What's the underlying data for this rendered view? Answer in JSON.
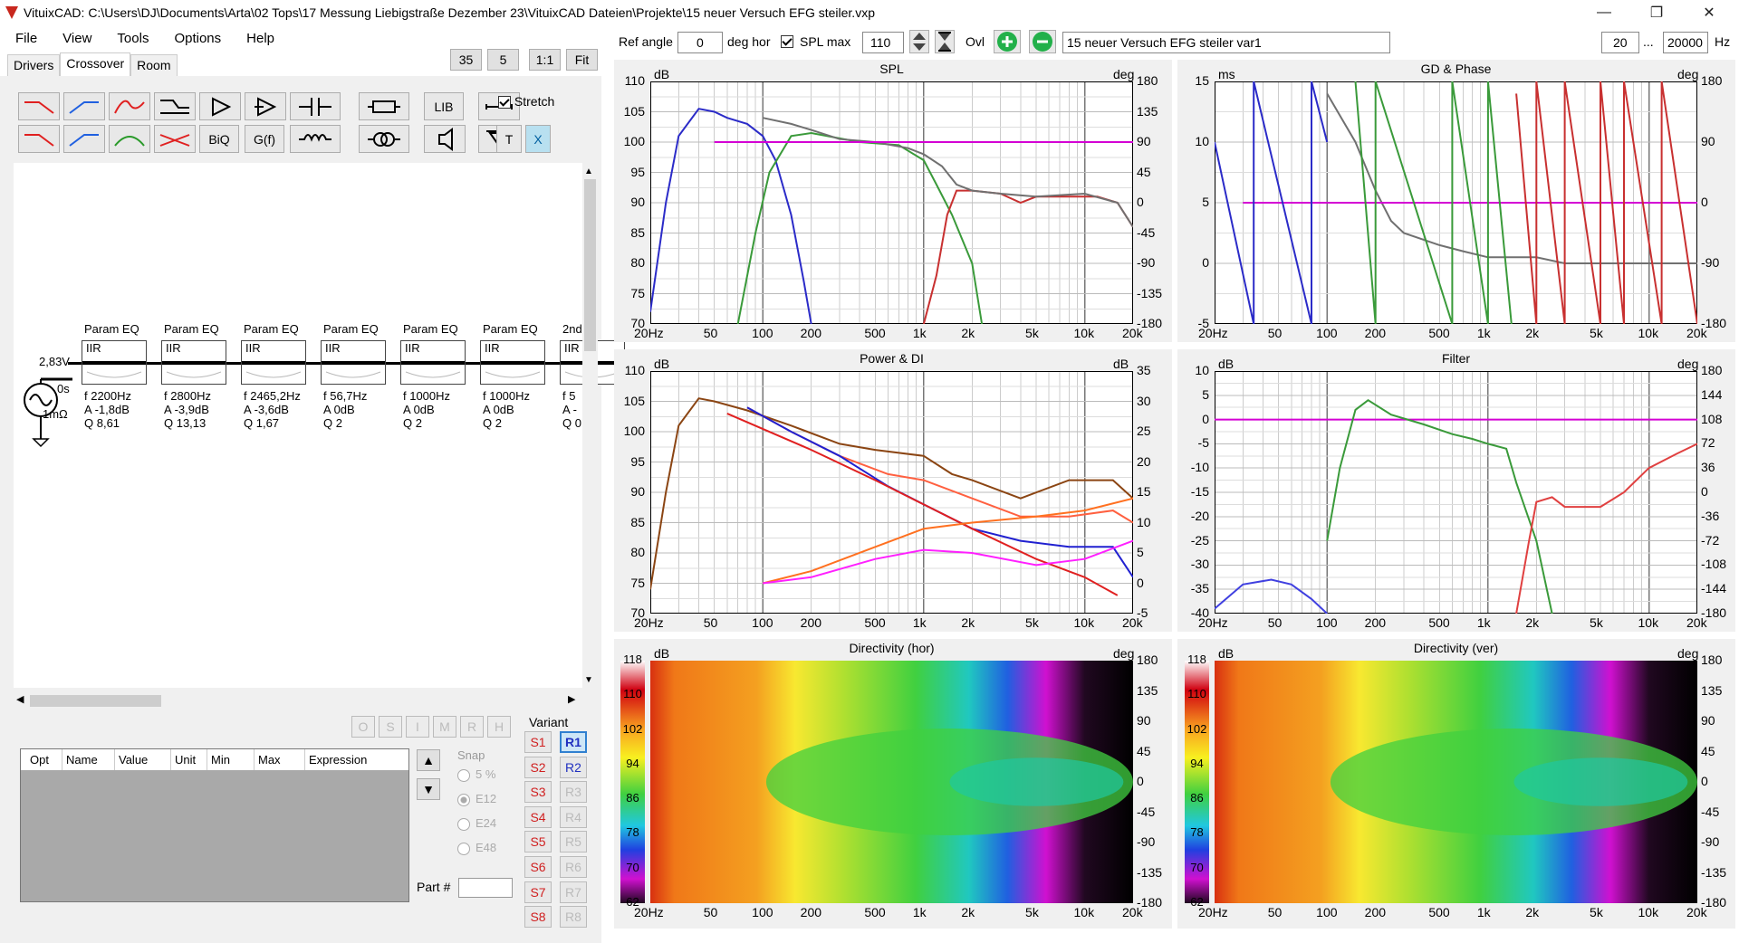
{
  "window": {
    "title": "VituixCAD: C:\\Users\\DJ\\Documents\\Arta\\02 Tops\\17 Messung Liebigstraße Dezember 23\\VituixCAD Dateien\\Projekte\\15 neuer Versuch EFG steiler.vxp"
  },
  "menu": [
    "File",
    "View",
    "Tools",
    "Options",
    "Help"
  ],
  "topbuttons": {
    "b35": "35",
    "b5": "5",
    "b11": "1:1",
    "fit": "Fit"
  },
  "tabs": [
    "Drivers",
    "Crossover",
    "Room"
  ],
  "toolbar": {
    "lib": "LIB",
    "stretch": "Stretch",
    "biq": "BiQ",
    "gf": "G(f)",
    "t": "T",
    "x": "X"
  },
  "source": {
    "voltage": "2,83V",
    "delay": "0s",
    "impedance": "1mΩ"
  },
  "peq": [
    {
      "title": "Param EQ",
      "type": "IIR",
      "f": "f   2200Hz",
      "a": "A  -1,8dB",
      "q": "Q  8,61"
    },
    {
      "title": "Param EQ",
      "type": "IIR",
      "f": "f   2800Hz",
      "a": "A  -3,9dB",
      "q": "Q  13,13"
    },
    {
      "title": "Param EQ",
      "type": "IIR",
      "f": "f   2465,2Hz",
      "a": "A  -3,6dB",
      "q": "Q  1,67"
    },
    {
      "title": "Param EQ",
      "type": "IIR",
      "f": "f   56,7Hz",
      "a": "A  0dB",
      "q": "Q  2"
    },
    {
      "title": "Param EQ",
      "type": "IIR",
      "f": "f   1000Hz",
      "a": "A  0dB",
      "q": "Q  2"
    },
    {
      "title": "Param EQ",
      "type": "IIR",
      "f": "f   1000Hz",
      "a": "A  0dB",
      "q": "Q  2"
    },
    {
      "title": "2nd",
      "type": "IIR",
      "f": "f  5",
      "a": "A  -",
      "q": "Q  0"
    }
  ],
  "optbuttons": [
    "O",
    "S",
    "I",
    "M",
    "R",
    "H"
  ],
  "opt_table": {
    "headers": [
      "Opt",
      "Name",
      "Value",
      "Unit",
      "Min",
      "Max",
      "Expression"
    ]
  },
  "snap": {
    "label": "Snap",
    "options": [
      "5 %",
      "E12",
      "E24",
      "E48"
    ],
    "selected": "E12"
  },
  "variant": {
    "label": "Variant",
    "s": [
      "S1",
      "S2",
      "S3",
      "S4",
      "S5",
      "S6",
      "S7",
      "S8"
    ],
    "r": [
      "R1",
      "R2",
      "R3",
      "R4",
      "R5",
      "R6",
      "R7",
      "R8"
    ],
    "selected_r": "R1"
  },
  "part": {
    "label": "Part #",
    "value": ""
  },
  "controls": {
    "ref_angle_label": "Ref angle",
    "ref_angle": "0",
    "deg_hor": "deg hor",
    "spl_max_label": "SPL max",
    "spl_max": "110",
    "ovl": "Ovl",
    "variant_name": "15 neuer Versuch EFG steiler var1",
    "f_min": "20",
    "dots": "...",
    "f_max": "20000",
    "hz": "Hz"
  },
  "xticks": [
    "20Hz",
    "50",
    "100",
    "200",
    "500",
    "1k",
    "2k",
    "5k",
    "10k",
    "20k"
  ],
  "colors": {
    "accent": "#cc0000",
    "pink": "#d4009f"
  },
  "chart_data": [
    {
      "type": "line",
      "title": "SPL",
      "ylabel": "dB",
      "y2label": "deg",
      "ylim": [
        70,
        110
      ],
      "y2lim": [
        -180,
        180
      ],
      "yticks": [
        "110",
        "105",
        "100",
        "95",
        "90",
        "85",
        "80",
        "75",
        "70"
      ],
      "y2ticks": [
        "180",
        "135",
        "90",
        "45",
        "0",
        "-45",
        "-90",
        "-135",
        "-180"
      ],
      "series": [
        {
          "color": "#2b2bc8",
          "points": [
            [
              20,
              72
            ],
            [
              25,
              90
            ],
            [
              30,
              101
            ],
            [
              40,
              105.5
            ],
            [
              50,
              105
            ],
            [
              60,
              104
            ],
            [
              80,
              103
            ],
            [
              100,
              101
            ],
            [
              120,
              97
            ],
            [
              150,
              88
            ],
            [
              180,
              77
            ],
            [
              200,
              70
            ]
          ]
        },
        {
          "color": "#3a9a3a",
          "points": [
            [
              70,
              70
            ],
            [
              90,
              85
            ],
            [
              110,
              95
            ],
            [
              150,
              101
            ],
            [
              200,
              101.5
            ],
            [
              400,
              100
            ],
            [
              700,
              99.5
            ],
            [
              1000,
              97
            ],
            [
              1200,
              93
            ],
            [
              1500,
              88
            ],
            [
              2000,
              80
            ],
            [
              2300,
              70
            ]
          ]
        },
        {
          "color": "#c83030",
          "points": [
            [
              1000,
              70
            ],
            [
              1200,
              78
            ],
            [
              1400,
              88
            ],
            [
              1600,
              92
            ],
            [
              2000,
              92
            ],
            [
              3000,
              91.5
            ],
            [
              4000,
              90
            ],
            [
              5000,
              91
            ],
            [
              8000,
              91
            ],
            [
              12000,
              91
            ],
            [
              16000,
              90
            ],
            [
              20000,
              86
            ]
          ]
        },
        {
          "color": "#707070",
          "points": [
            [
              100,
              104
            ],
            [
              150,
              103
            ],
            [
              200,
              102
            ],
            [
              300,
              100.5
            ],
            [
              500,
              100
            ],
            [
              800,
              99
            ],
            [
              1000,
              98
            ],
            [
              1300,
              96
            ],
            [
              1600,
              93
            ],
            [
              2000,
              92
            ],
            [
              3000,
              91.5
            ],
            [
              5000,
              91
            ],
            [
              10000,
              91.5
            ],
            [
              16000,
              90
            ],
            [
              20000,
              86
            ]
          ]
        },
        {
          "color": "#d400d4",
          "points": [
            [
              50,
              100
            ],
            [
              20000,
              100
            ]
          ]
        }
      ]
    },
    {
      "type": "line",
      "title": "GD & Phase",
      "ylabel": "ms",
      "y2label": "deg",
      "ylim": [
        -5,
        15
      ],
      "y2lim": [
        -180,
        180
      ],
      "yticks": [
        "15",
        "10",
        "5",
        "0",
        "-5"
      ],
      "y2ticks": [
        "180",
        "90",
        "0",
        "-90",
        "-180"
      ],
      "series": [
        {
          "color": "#707070",
          "points": [
            [
              100,
              14
            ],
            [
              150,
              10
            ],
            [
              200,
              6
            ],
            [
              250,
              3.5
            ],
            [
              300,
              2.5
            ],
            [
              500,
              1.5
            ],
            [
              700,
              1
            ],
            [
              1000,
              0.5
            ],
            [
              2000,
              0.5
            ],
            [
              3000,
              0
            ],
            [
              20000,
              0
            ]
          ]
        },
        {
          "color": "#d400d4",
          "points": [
            [
              30,
              5
            ],
            [
              20000,
              5
            ]
          ]
        },
        {
          "color": "#2b2bc8",
          "points": [
            [
              20,
              10
            ],
            [
              35,
              -5
            ],
            [
              35,
              15
            ],
            [
              80,
              -5
            ],
            [
              80,
              15
            ],
            [
              100,
              10
            ]
          ]
        },
        {
          "color": "#3a9a3a",
          "points": [
            [
              150,
              15
            ],
            [
              200,
              -5
            ],
            [
              200,
              15
            ],
            [
              600,
              -5
            ],
            [
              600,
              15
            ],
            [
              1000,
              -5
            ],
            [
              1000,
              15
            ],
            [
              1400,
              -5
            ]
          ]
        },
        {
          "color": "#c83030",
          "points": [
            [
              1500,
              14
            ],
            [
              2000,
              -5
            ],
            [
              2000,
              15
            ],
            [
              3000,
              -5
            ],
            [
              3000,
              15
            ],
            [
              5000,
              -5
            ],
            [
              5000,
              15
            ],
            [
              7000,
              -5
            ],
            [
              7000,
              15
            ],
            [
              12000,
              -5
            ],
            [
              12000,
              15
            ],
            [
              20000,
              -5
            ]
          ]
        }
      ]
    },
    {
      "type": "line",
      "title": "Power & DI",
      "ylabel": "dB",
      "y2label": "dB",
      "ylim": [
        70,
        110
      ],
      "y2lim": [
        -5,
        35
      ],
      "yticks": [
        "110",
        "105",
        "100",
        "95",
        "90",
        "85",
        "80",
        "75",
        "70"
      ],
      "y2ticks": [
        "35",
        "30",
        "25",
        "20",
        "15",
        "10",
        "5",
        "0",
        "-5"
      ],
      "series": [
        {
          "color": "#8b4513",
          "points": [
            [
              20,
              74
            ],
            [
              25,
              90
            ],
            [
              30,
              101
            ],
            [
              40,
              105.5
            ],
            [
              50,
              105
            ],
            [
              80,
              103.5
            ],
            [
              150,
              101
            ],
            [
              300,
              98
            ],
            [
              500,
              97
            ],
            [
              1000,
              96
            ],
            [
              1500,
              93
            ],
            [
              2000,
              92
            ],
            [
              4000,
              89
            ],
            [
              8000,
              92
            ],
            [
              15000,
              92
            ],
            [
              20000,
              89
            ]
          ]
        },
        {
          "color": "#ff6040",
          "points": [
            [
              80,
              104
            ],
            [
              150,
              100
            ],
            [
              300,
              96
            ],
            [
              600,
              93
            ],
            [
              1000,
              92
            ],
            [
              2000,
              89
            ],
            [
              4000,
              86
            ],
            [
              8000,
              86
            ],
            [
              15000,
              87
            ],
            [
              20000,
              85
            ]
          ]
        },
        {
          "color": "#2020d0",
          "points": [
            [
              80,
              104
            ],
            [
              150,
              100
            ],
            [
              300,
              96
            ],
            [
              600,
              91
            ],
            [
              1000,
              88
            ],
            [
              2000,
              84
            ],
            [
              4000,
              82
            ],
            [
              8000,
              81
            ],
            [
              15000,
              81
            ],
            [
              20000,
              76
            ]
          ]
        },
        {
          "color": "#e02020",
          "points": [
            [
              60,
              103
            ],
            [
              200,
              97
            ],
            [
              500,
              92
            ],
            [
              1000,
              88
            ],
            [
              2000,
              84
            ],
            [
              5000,
              79
            ],
            [
              10000,
              76
            ],
            [
              16000,
              73
            ]
          ]
        },
        {
          "color": "#ff7020",
          "points": [
            [
              100,
              75
            ],
            [
              200,
              77
            ],
            [
              500,
              81
            ],
            [
              1000,
              84
            ],
            [
              2000,
              85
            ],
            [
              5000,
              86
            ],
            [
              10000,
              87
            ],
            [
              20000,
              89
            ]
          ]
        },
        {
          "color": "#ff20ff",
          "points": [
            [
              100,
              75
            ],
            [
              200,
              76
            ],
            [
              500,
              79
            ],
            [
              1000,
              80.5
            ],
            [
              2000,
              80
            ],
            [
              5000,
              78
            ],
            [
              10000,
              79
            ],
            [
              20000,
              82
            ]
          ]
        }
      ]
    },
    {
      "type": "line",
      "title": "Filter",
      "ylabel": "dB",
      "y2label": "deg",
      "ylim": [
        -40,
        10
      ],
      "y2lim": [
        -180,
        180
      ],
      "yticks": [
        "10",
        "5",
        "0",
        "-5",
        "-10",
        "-15",
        "-20",
        "-25",
        "-30",
        "-35",
        "-40"
      ],
      "y2ticks": [
        "180",
        "144",
        "108",
        "72",
        "36",
        "0",
        "-36",
        "-72",
        "-108",
        "-144",
        "-180"
      ],
      "series": [
        {
          "color": "#d400d4",
          "points": [
            [
              20,
              0
            ],
            [
              20000,
              0
            ]
          ]
        },
        {
          "color": "#3a9a3a",
          "points": [
            [
              100,
              -25
            ],
            [
              120,
              -10
            ],
            [
              150,
              2
            ],
            [
              180,
              4
            ],
            [
              250,
              1
            ],
            [
              400,
              -1
            ],
            [
              600,
              -3
            ],
            [
              800,
              -4
            ],
            [
              1000,
              -5
            ],
            [
              1300,
              -6
            ],
            [
              1500,
              -13
            ],
            [
              2000,
              -25
            ],
            [
              2500,
              -40
            ]
          ]
        },
        {
          "color": "#e04040",
          "points": [
            [
              1500,
              -40
            ],
            [
              1800,
              -25
            ],
            [
              2000,
              -17
            ],
            [
              2500,
              -16
            ],
            [
              3000,
              -18
            ],
            [
              5000,
              -18
            ],
            [
              7000,
              -15
            ],
            [
              10000,
              -10
            ],
            [
              15000,
              -7
            ],
            [
              20000,
              -5
            ]
          ]
        },
        {
          "color": "#4040e0",
          "points": [
            [
              20,
              -39
            ],
            [
              30,
              -34
            ],
            [
              45,
              -33
            ],
            [
              60,
              -34
            ],
            [
              80,
              -37
            ],
            [
              100,
              -40
            ]
          ]
        }
      ]
    },
    {
      "type": "heatmap",
      "title": "Directivity (hor)",
      "ylabel": "dB",
      "y2label": "deg",
      "colorbar": [
        "118",
        "110",
        "102",
        "94",
        "86",
        "78",
        "70",
        "62"
      ],
      "y2ticks": [
        "180",
        "135",
        "90",
        "45",
        "0",
        "-45",
        "-90",
        "-135",
        "-180"
      ]
    },
    {
      "type": "heatmap",
      "title": "Directivity (ver)",
      "ylabel": "dB",
      "y2label": "deg",
      "colorbar": [
        "118",
        "110",
        "102",
        "94",
        "86",
        "78",
        "70",
        "62"
      ],
      "y2ticks": [
        "180",
        "135",
        "90",
        "45",
        "0",
        "-45",
        "-90",
        "-135",
        "-180"
      ]
    }
  ]
}
